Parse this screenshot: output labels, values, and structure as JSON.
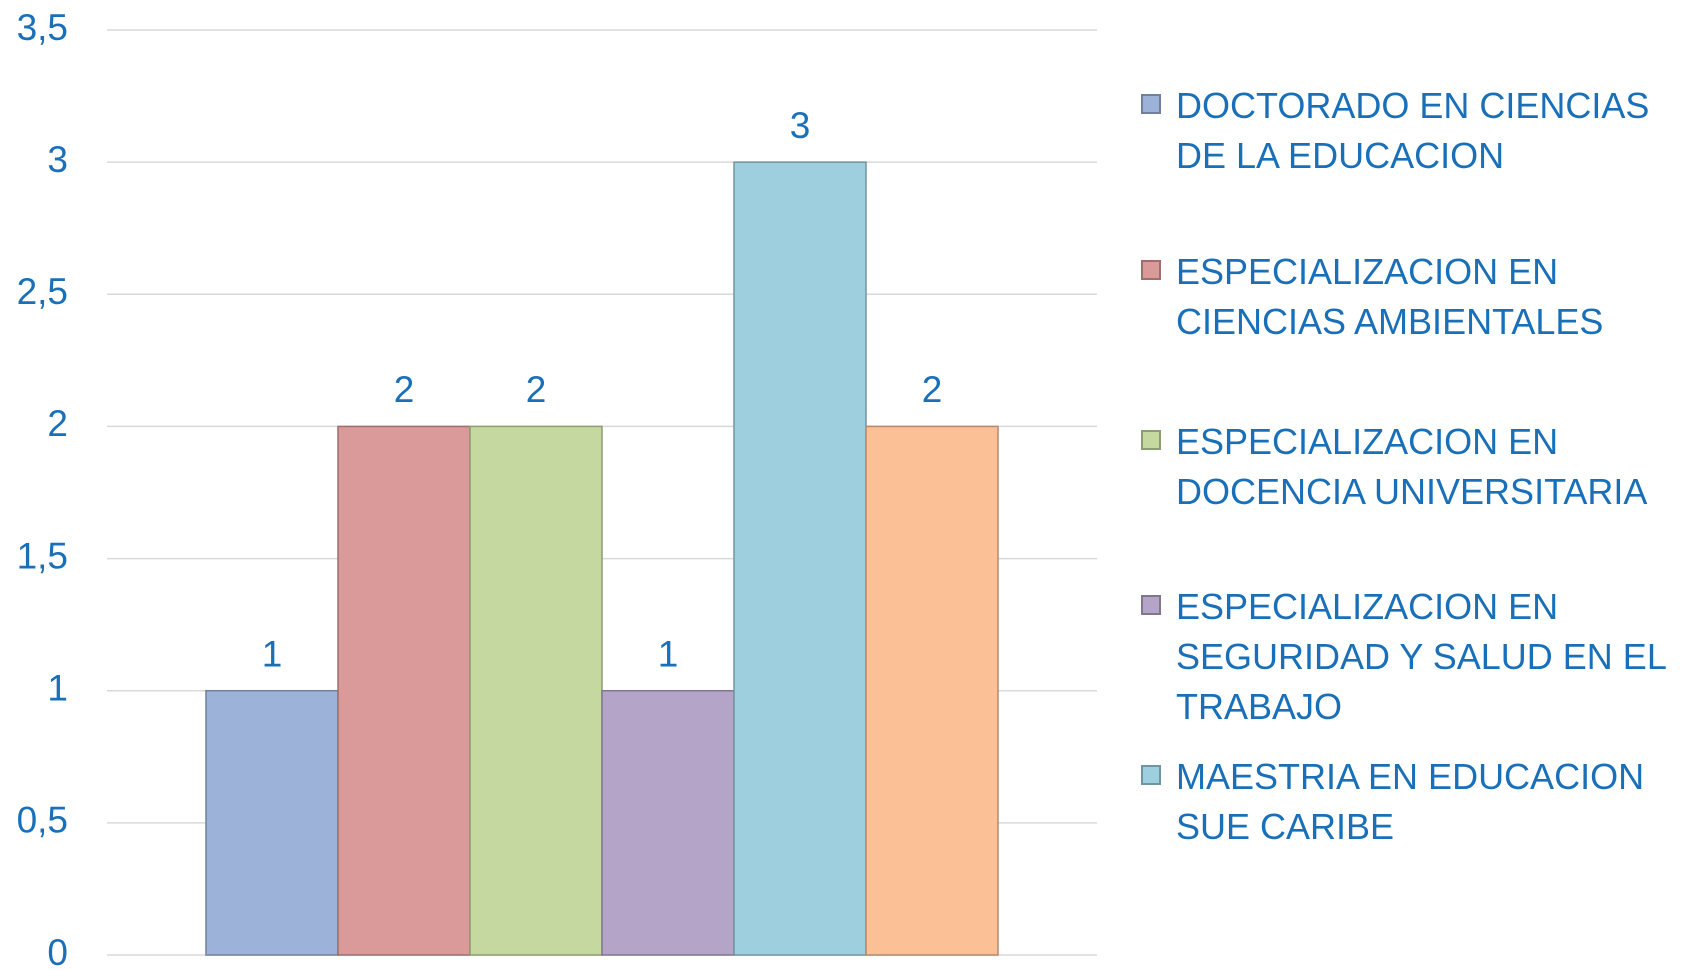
{
  "chart_data": {
    "type": "bar",
    "categories": [
      null
    ],
    "series": [
      {
        "name": "DOCTORADO EN CIENCIAS DE LA EDUCACION",
        "color": "#9cb2d9",
        "values": [
          1
        ]
      },
      {
        "name": "ESPECIALIZACION EN CIENCIAS AMBIENTALES",
        "color": "#d99a99",
        "values": [
          2
        ]
      },
      {
        "name": "ESPECIALIZACION EN DOCENCIA UNIVERSITARIA",
        "color": "#c4d8a0",
        "values": [
          2
        ]
      },
      {
        "name": "ESPECIALIZACION EN SEGURIDAD Y SALUD EN EL TRABAJO",
        "color": "#b3a4c8",
        "values": [
          1
        ]
      },
      {
        "name": "MAESTRIA EN EDUCACION SUE CARIBE",
        "color": "#9dcfde",
        "values": [
          3
        ]
      },
      {
        "color": "#fbc096",
        "values": [
          2
        ]
      }
    ],
    "ylim": [
      0,
      3.5
    ],
    "yticks": [
      0,
      {
        "value": 0.5,
        "label": "0,5"
      },
      1,
      {
        "value": 1.5,
        "label": "1,5"
      },
      2,
      {
        "value": 2.5,
        "label": "2,5"
      },
      3,
      {
        "value": 3.5,
        "label": "3,5"
      }
    ],
    "grid": true,
    "legend": "right"
  }
}
